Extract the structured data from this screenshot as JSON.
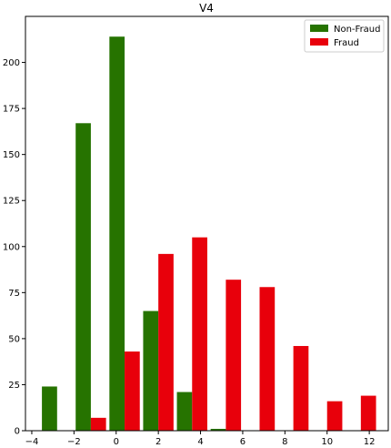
{
  "chart_data": {
    "type": "bar",
    "title": "V4",
    "xlabel": "",
    "ylabel": "",
    "xlim": [
      -4.3,
      12.9
    ],
    "ylim": [
      0,
      225
    ],
    "xticks": [
      -4,
      -2,
      0,
      2,
      4,
      6,
      8,
      10,
      12
    ],
    "xtick_labels": [
      "−4",
      "−2",
      "0",
      "2",
      "4",
      "6",
      "8",
      "10",
      "12"
    ],
    "yticks": [
      0,
      25,
      50,
      75,
      100,
      125,
      150,
      175,
      200
    ],
    "yticks_labels": [
      "0",
      "25",
      "50",
      "75",
      "100",
      "125",
      "150",
      "175",
      "200"
    ],
    "bin_edges": [
      -3.6,
      -2.0,
      -0.4,
      1.2,
      2.8,
      4.4,
      6.0,
      7.6,
      9.2,
      10.8,
      12.4
    ],
    "legend_position": "top-right",
    "series": [
      {
        "name": "Non-Fraud",
        "color": "#267300",
        "values": [
          24,
          167,
          214,
          65,
          21,
          1,
          0,
          0,
          0,
          0
        ]
      },
      {
        "name": "Fraud",
        "color": "#e8000b",
        "values": [
          0,
          7,
          43,
          96,
          105,
          82,
          78,
          46,
          16,
          19
        ]
      }
    ]
  }
}
